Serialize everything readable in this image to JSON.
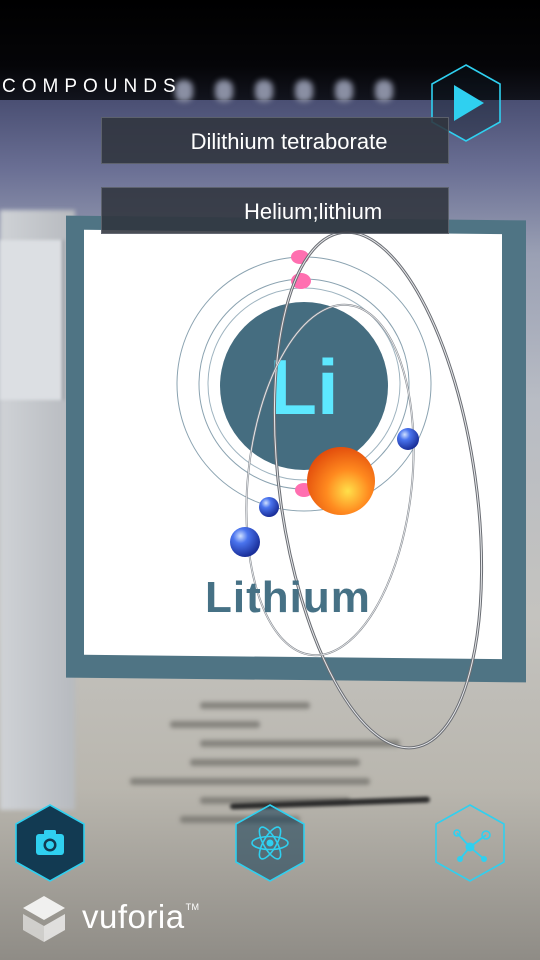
{
  "header": {
    "compounds_label": "COMPOUNDS",
    "play_icon": "play-icon"
  },
  "compounds": [
    {
      "label": "Dilithium tetraborate"
    },
    {
      "label": "Helium;lithium"
    }
  ],
  "marker": {
    "symbol": "Li",
    "name": "Lithium"
  },
  "toolbar": {
    "camera_icon": "camera-icon",
    "atom_icon": "atom-icon",
    "molecule_icon": "molecule-icon"
  },
  "brand": {
    "name": "vuforia",
    "tm": "TM"
  },
  "colors": {
    "accent": "#2fd0f0",
    "hex_fill": "#123a52",
    "card_border": "#4f7484",
    "symbol_circle": "#456d80",
    "symbol_text": "#5de8ff",
    "electron": "#2f55d8",
    "nucleus": "#ff7a1a",
    "proton": "#ff5fa6"
  }
}
